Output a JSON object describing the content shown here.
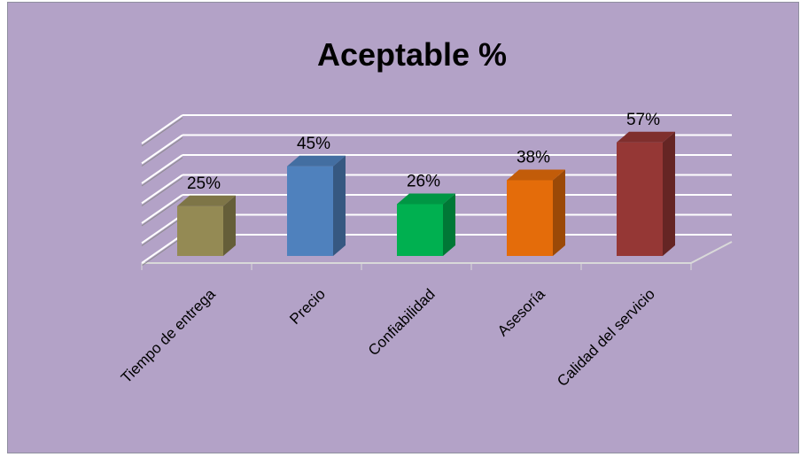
{
  "chart_data": {
    "type": "bar",
    "title": "Aceptable %",
    "categories": [
      "Tiempo de entrega",
      "Precio",
      "Confiabilidad",
      "Asesoría",
      "Calidad del servicio"
    ],
    "values": [
      25,
      45,
      26,
      38,
      57
    ],
    "data_labels": [
      "25%",
      "45%",
      "26%",
      "38%",
      "57%"
    ],
    "colors": [
      "#948a54",
      "#4f81bd",
      "#00b050",
      "#e46c0a",
      "#953735"
    ],
    "ylim": [
      0,
      60
    ],
    "three_d": true,
    "grid": true,
    "background": "#b3a2c7"
  }
}
